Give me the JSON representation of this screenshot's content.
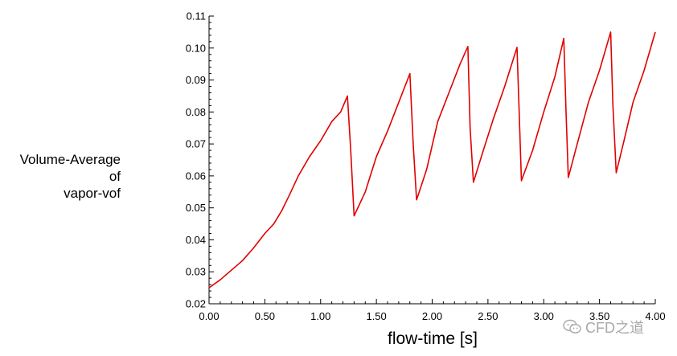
{
  "chart_data": {
    "type": "line",
    "title": "",
    "xlabel": "flow-time [s]",
    "ylabel_lines": [
      "Volume-Average",
      "of",
      "vapor-vof"
    ],
    "xlim": [
      0,
      4.0
    ],
    "ylim": [
      0.02,
      0.11
    ],
    "x_ticks": [
      "0.00",
      "0.50",
      "1.00",
      "1.50",
      "2.00",
      "2.50",
      "3.00",
      "3.50",
      "4.00"
    ],
    "y_ticks": [
      "0.02",
      "0.03",
      "0.04",
      "0.05",
      "0.06",
      "0.07",
      "0.08",
      "0.09",
      "0.10",
      "0.11"
    ],
    "grid": false,
    "line_color": "#e00000",
    "series": [
      {
        "x": [
          0.0,
          0.1,
          0.2,
          0.3,
          0.4,
          0.5,
          0.58,
          0.65,
          0.72,
          0.8,
          0.9,
          1.0,
          1.1,
          1.18,
          1.24,
          1.27,
          1.3,
          1.4,
          1.5,
          1.6,
          1.7,
          1.8,
          1.83,
          1.86,
          1.95,
          2.05,
          2.15,
          2.25,
          2.32,
          2.34,
          2.37,
          2.45,
          2.55,
          2.65,
          2.76,
          2.78,
          2.8,
          2.9,
          3.0,
          3.1,
          3.18,
          3.2,
          3.22,
          3.3,
          3.4,
          3.5,
          3.6,
          3.62,
          3.65,
          3.72,
          3.8,
          3.9,
          4.0
        ],
        "y": [
          0.025,
          0.0275,
          0.0305,
          0.0335,
          0.0375,
          0.042,
          0.045,
          0.049,
          0.054,
          0.06,
          0.066,
          0.071,
          0.077,
          0.08,
          0.085,
          0.068,
          0.0475,
          0.055,
          0.066,
          0.074,
          0.083,
          0.092,
          0.07,
          0.0525,
          0.062,
          0.077,
          0.086,
          0.095,
          0.1005,
          0.075,
          0.058,
          0.067,
          0.078,
          0.088,
          0.1002,
          0.08,
          0.0585,
          0.068,
          0.08,
          0.091,
          0.103,
          0.08,
          0.0595,
          0.07,
          0.083,
          0.093,
          0.105,
          0.082,
          0.061,
          0.071,
          0.083,
          0.093,
          0.105
        ]
      }
    ]
  },
  "watermark": {
    "text": "CFD之道",
    "icon": "wechat-icon"
  }
}
